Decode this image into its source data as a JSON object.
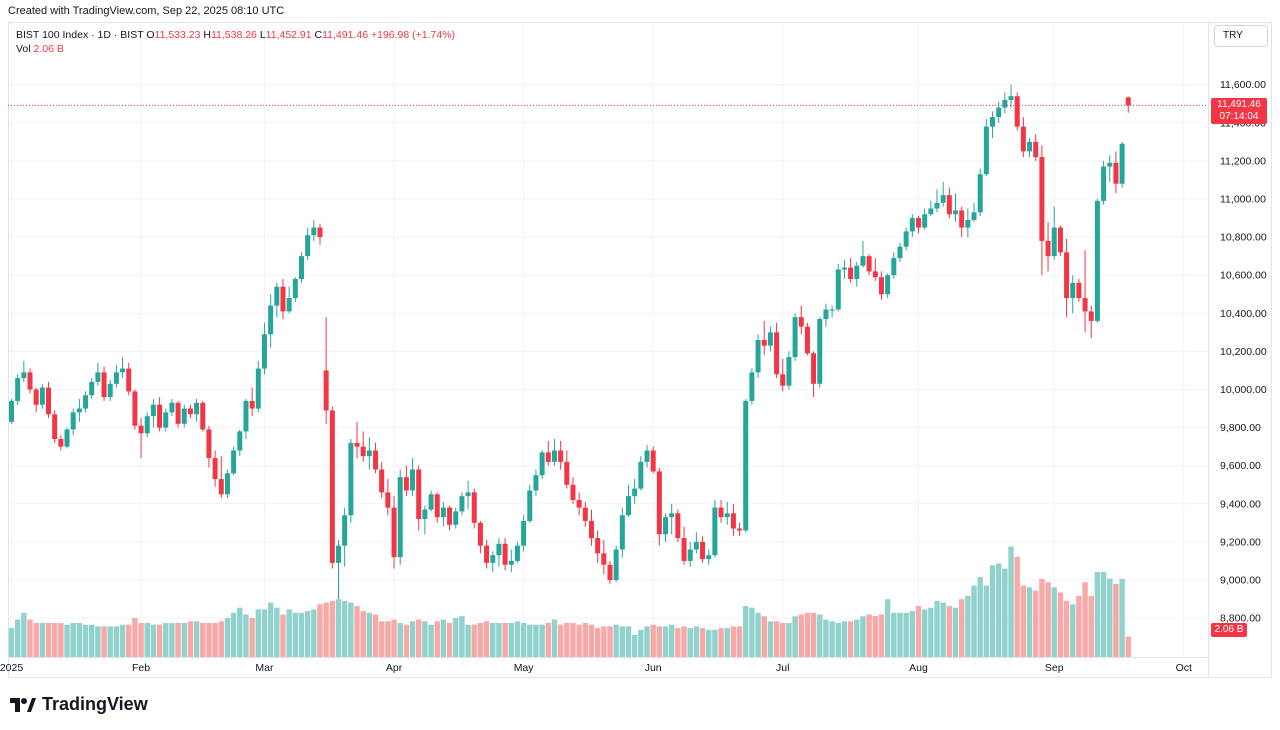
{
  "header": {
    "created_text": "Created with TradingView.com, Sep 22, 2025 08:10 UTC"
  },
  "legend": {
    "symbol": "BIST 100 Index · 1D · BIST",
    "o_label": "O",
    "o_value": "11,533.23",
    "h_label": "H",
    "h_value": "11,538.26",
    "l_label": "L",
    "l_value": "11,452.91",
    "c_label": "C",
    "c_value": "11,491.46",
    "change": "+196.98 (+1.74%)",
    "vol_label": "Vol",
    "vol_value": "2.06 B"
  },
  "currency_button": "TRY",
  "logo_text": "TradingView",
  "price_tag": {
    "price": "11,491.46",
    "countdown": "07:14:04"
  },
  "vol_tag": "2.06 B",
  "colors": {
    "up": "#26a69a",
    "down": "#f23645",
    "vol_up": "#92d2cc",
    "vol_down": "#f7a9a7",
    "grid": "#f0f3fa"
  },
  "chart_data": {
    "type": "candlestick",
    "title": "BIST 100 Index · 1D · BIST",
    "currency": "TRY",
    "y_ticks": [
      8800,
      9000,
      9200,
      9400,
      9600,
      9800,
      10000,
      10200,
      10400,
      10600,
      10800,
      11000,
      11200,
      11400,
      11600
    ],
    "y_tick_labels": [
      "8,800.00",
      "9,000.00",
      "9,200.00",
      "9,400.00",
      "9,600.00",
      "9,800.00",
      "10,000.00",
      "10,200.00",
      "10,400.00",
      "10,600.00",
      "10,800.00",
      "11,000.00",
      "11,200.00",
      "11,400.00",
      "11,600.00"
    ],
    "x_labels": [
      "2025",
      "Feb",
      "Mar",
      "Apr",
      "May",
      "Jun",
      "Jul",
      "Aug",
      "Sep",
      "Oct"
    ],
    "x_label_days": [
      0,
      21,
      41,
      62,
      83,
      104,
      125,
      147,
      169,
      190
    ],
    "last_close": 11491.46,
    "grid": true,
    "candles": [
      [
        9830,
        9950,
        9820,
        9940,
        0.85
      ],
      [
        9940,
        10080,
        9920,
        10060,
        1.1
      ],
      [
        10060,
        10150,
        10040,
        10090,
        1.3
      ],
      [
        10090,
        10110,
        9980,
        10000,
        1.1
      ],
      [
        10000,
        10010,
        9880,
        9920,
        1.0
      ],
      [
        9920,
        10030,
        9900,
        10010,
        1.0
      ],
      [
        10010,
        10040,
        9850,
        9870,
        1.0
      ],
      [
        9870,
        9890,
        9720,
        9740,
        1.0
      ],
      [
        9740,
        9760,
        9680,
        9700,
        1.0
      ],
      [
        9700,
        9800,
        9690,
        9790,
        0.95
      ],
      [
        9790,
        9900,
        9760,
        9880,
        1.0
      ],
      [
        9880,
        9950,
        9830,
        9900,
        1.0
      ],
      [
        9900,
        9990,
        9880,
        9970,
        0.95
      ],
      [
        9970,
        10060,
        9950,
        10040,
        0.95
      ],
      [
        10040,
        10140,
        10020,
        10090,
        0.9
      ],
      [
        10090,
        10120,
        9940,
        9960,
        0.9
      ],
      [
        9960,
        10050,
        9940,
        10030,
        0.9
      ],
      [
        10030,
        10130,
        10010,
        10090,
        0.9
      ],
      [
        10090,
        10170,
        10060,
        10110,
        0.95
      ],
      [
        10110,
        10140,
        9970,
        9990,
        0.95
      ],
      [
        9990,
        10000,
        9790,
        9810,
        1.15
      ],
      [
        9810,
        9850,
        9640,
        9770,
        1.0
      ],
      [
        9770,
        9880,
        9750,
        9860,
        1.0
      ],
      [
        9860,
        9950,
        9800,
        9920,
        0.95
      ],
      [
        9920,
        9960,
        9780,
        9800,
        0.95
      ],
      [
        9800,
        9900,
        9780,
        9880,
        1.0
      ],
      [
        9880,
        9950,
        9860,
        9930,
        1.0
      ],
      [
        9930,
        9940,
        9800,
        9820,
        1.0
      ],
      [
        9820,
        9920,
        9800,
        9900,
        1.0
      ],
      [
        9900,
        9920,
        9850,
        9870,
        1.05
      ],
      [
        9870,
        9950,
        9830,
        9930,
        1.05
      ],
      [
        9930,
        9940,
        9780,
        9790,
        1.0
      ],
      [
        9790,
        9810,
        9590,
        9640,
        1.0
      ],
      [
        9640,
        9680,
        9490,
        9530,
        1.0
      ],
      [
        9530,
        9650,
        9430,
        9450,
        1.05
      ],
      [
        9450,
        9580,
        9430,
        9560,
        1.15
      ],
      [
        9560,
        9700,
        9550,
        9680,
        1.3
      ],
      [
        9680,
        9790,
        9650,
        9780,
        1.45
      ],
      [
        9780,
        9950,
        9740,
        9940,
        1.25
      ],
      [
        9940,
        10010,
        9860,
        9900,
        1.15
      ],
      [
        9900,
        10150,
        9880,
        10110,
        1.4
      ],
      [
        10110,
        10350,
        10080,
        10290,
        1.4
      ],
      [
        10290,
        10500,
        10220,
        10440,
        1.6
      ],
      [
        10440,
        10560,
        10380,
        10540,
        1.45
      ],
      [
        10540,
        10580,
        10370,
        10410,
        1.25
      ],
      [
        10410,
        10540,
        10400,
        10480,
        1.4
      ],
      [
        10480,
        10590,
        10460,
        10580,
        1.3
      ],
      [
        10580,
        10720,
        10560,
        10700,
        1.3
      ],
      [
        10700,
        10850,
        10680,
        10810,
        1.35
      ],
      [
        10810,
        10890,
        10780,
        10850,
        1.4
      ],
      [
        10850,
        10870,
        10760,
        10800,
        1.55
      ],
      [
        10100,
        10380,
        9820,
        9890,
        1.6
      ],
      [
        9890,
        9910,
        9060,
        9090,
        1.65
      ],
      [
        9090,
        9210,
        8900,
        9180,
        1.7
      ],
      [
        9180,
        9380,
        9070,
        9340,
        1.65
      ],
      [
        9340,
        9740,
        9300,
        9720,
        1.6
      ],
      [
        9720,
        9830,
        9640,
        9700,
        1.5
      ],
      [
        9700,
        9780,
        9620,
        9650,
        1.35
      ],
      [
        9650,
        9750,
        9580,
        9680,
        1.3
      ],
      [
        9680,
        9720,
        9560,
        9580,
        1.25
      ],
      [
        9580,
        9620,
        9430,
        9460,
        1.05
      ],
      [
        9460,
        9530,
        9340,
        9380,
        1.05
      ],
      [
        9380,
        9440,
        9060,
        9120,
        1.1
      ],
      [
        9120,
        9580,
        9080,
        9540,
        1.0
      ],
      [
        9540,
        9600,
        9440,
        9470,
        0.95
      ],
      [
        9470,
        9640,
        9440,
        9580,
        1.05
      ],
      [
        9580,
        9600,
        9260,
        9320,
        1.1
      ],
      [
        9320,
        9390,
        9240,
        9370,
        1.05
      ],
      [
        9370,
        9470,
        9360,
        9450,
        0.95
      ],
      [
        9450,
        9460,
        9300,
        9330,
        1.05
      ],
      [
        9330,
        9410,
        9280,
        9380,
        1.1
      ],
      [
        9380,
        9390,
        9260,
        9290,
        1.0
      ],
      [
        9290,
        9380,
        9270,
        9360,
        1.15
      ],
      [
        9360,
        9460,
        9340,
        9440,
        1.2
      ],
      [
        9440,
        9520,
        9370,
        9460,
        0.95
      ],
      [
        9460,
        9480,
        9270,
        9300,
        0.95
      ],
      [
        9300,
        9310,
        9140,
        9180,
        1.0
      ],
      [
        9180,
        9210,
        9060,
        9090,
        1.05
      ],
      [
        9090,
        9150,
        9040,
        9130,
        1.0
      ],
      [
        9130,
        9220,
        9070,
        9190,
        1.0
      ],
      [
        9190,
        9220,
        9050,
        9080,
        1.0
      ],
      [
        9080,
        9160,
        9040,
        9100,
        1.0
      ],
      [
        9100,
        9200,
        9090,
        9180,
        1.05
      ],
      [
        9180,
        9340,
        9150,
        9310,
        1.0
      ],
      [
        9310,
        9500,
        9300,
        9470,
        0.95
      ],
      [
        9470,
        9580,
        9440,
        9550,
        0.95
      ],
      [
        9550,
        9680,
        9530,
        9670,
        0.95
      ],
      [
        9670,
        9730,
        9600,
        9620,
        1.0
      ],
      [
        9620,
        9740,
        9600,
        9680,
        1.1
      ],
      [
        9680,
        9730,
        9580,
        9620,
        0.95
      ],
      [
        9620,
        9680,
        9480,
        9500,
        1.0
      ],
      [
        9500,
        9540,
        9400,
        9420,
        1.0
      ],
      [
        9420,
        9460,
        9340,
        9380,
        0.95
      ],
      [
        9380,
        9410,
        9280,
        9310,
        1.0
      ],
      [
        9310,
        9370,
        9180,
        9220,
        0.95
      ],
      [
        9220,
        9260,
        9090,
        9140,
        0.85
      ],
      [
        9140,
        9210,
        9030,
        9080,
        0.9
      ],
      [
        9080,
        9100,
        8980,
        9000,
        0.9
      ],
      [
        9000,
        9180,
        8990,
        9160,
        0.95
      ],
      [
        9160,
        9380,
        9120,
        9340,
        0.9
      ],
      [
        9340,
        9500,
        9330,
        9440,
        0.9
      ],
      [
        9440,
        9530,
        9400,
        9480,
        0.65
      ],
      [
        9480,
        9650,
        9470,
        9620,
        0.8
      ],
      [
        9620,
        9710,
        9590,
        9680,
        0.9
      ],
      [
        9680,
        9700,
        9560,
        9570,
        0.95
      ],
      [
        9570,
        9590,
        9180,
        9240,
        0.9
      ],
      [
        9240,
        9350,
        9200,
        9330,
        0.9
      ],
      [
        9330,
        9400,
        9240,
        9350,
        0.95
      ],
      [
        9350,
        9370,
        9200,
        9220,
        0.85
      ],
      [
        9220,
        9280,
        9080,
        9100,
        0.9
      ],
      [
        9100,
        9200,
        9070,
        9160,
        0.85
      ],
      [
        9160,
        9250,
        9140,
        9200,
        0.9
      ],
      [
        9200,
        9230,
        9090,
        9110,
        0.85
      ],
      [
        9110,
        9160,
        9080,
        9130,
        0.8
      ],
      [
        9130,
        9420,
        9120,
        9380,
        0.8
      ],
      [
        9380,
        9420,
        9300,
        9330,
        0.85
      ],
      [
        9330,
        9410,
        9290,
        9350,
        0.85
      ],
      [
        9350,
        9400,
        9230,
        9270,
        0.9
      ],
      [
        9270,
        9300,
        9230,
        9260,
        0.9
      ],
      [
        9260,
        9950,
        9250,
        9940,
        1.5
      ],
      [
        9940,
        10110,
        9920,
        10090,
        1.45
      ],
      [
        10090,
        10290,
        10060,
        10260,
        1.3
      ],
      [
        10260,
        10360,
        10180,
        10230,
        1.2
      ],
      [
        10230,
        10330,
        10200,
        10300,
        1.05
      ],
      [
        10300,
        10350,
        10060,
        10080,
        1.05
      ],
      [
        10080,
        10160,
        9990,
        10020,
        1.0
      ],
      [
        10020,
        10200,
        10000,
        10170,
        1.0
      ],
      [
        10170,
        10400,
        10150,
        10380,
        1.2
      ],
      [
        10380,
        10440,
        10290,
        10330,
        1.25
      ],
      [
        10330,
        10350,
        10180,
        10190,
        1.3
      ],
      [
        10190,
        10200,
        9960,
        10030,
        1.3
      ],
      [
        10030,
        10380,
        10010,
        10370,
        1.25
      ],
      [
        10370,
        10450,
        10330,
        10420,
        1.1
      ],
      [
        10420,
        10440,
        10380,
        10420,
        1.05
      ],
      [
        10420,
        10660,
        10410,
        10630,
        1.0
      ],
      [
        10630,
        10680,
        10580,
        10640,
        1.05
      ],
      [
        10640,
        10690,
        10560,
        10580,
        1.05
      ],
      [
        10580,
        10670,
        10540,
        10650,
        1.1
      ],
      [
        10650,
        10780,
        10640,
        10700,
        1.2
      ],
      [
        10700,
        10710,
        10600,
        10620,
        1.25
      ],
      [
        10620,
        10690,
        10570,
        10590,
        1.2
      ],
      [
        10590,
        10620,
        10470,
        10500,
        1.25
      ],
      [
        10500,
        10610,
        10480,
        10600,
        1.7
      ],
      [
        10600,
        10720,
        10580,
        10690,
        1.3
      ],
      [
        10690,
        10770,
        10670,
        10750,
        1.3
      ],
      [
        10750,
        10850,
        10730,
        10830,
        1.3
      ],
      [
        10830,
        10920,
        10800,
        10900,
        1.35
      ],
      [
        10900,
        10910,
        10820,
        10850,
        1.5
      ],
      [
        10850,
        10950,
        10840,
        10920,
        1.4
      ],
      [
        10920,
        10990,
        10910,
        10950,
        1.45
      ],
      [
        10950,
        11050,
        10930,
        10980,
        1.65
      ],
      [
        10980,
        11090,
        10960,
        11020,
        1.6
      ],
      [
        11020,
        11060,
        10900,
        10920,
        1.5
      ],
      [
        10920,
        11030,
        10880,
        10940,
        1.45
      ],
      [
        10940,
        10960,
        10800,
        10850,
        1.7
      ],
      [
        10850,
        10950,
        10800,
        10890,
        1.8
      ],
      [
        10890,
        10980,
        10880,
        10930,
        2.1
      ],
      [
        10930,
        11160,
        10910,
        11130,
        2.35
      ],
      [
        11130,
        11420,
        11120,
        11380,
        2.1
      ],
      [
        11380,
        11460,
        11320,
        11430,
        2.7
      ],
      [
        11430,
        11510,
        11400,
        11480,
        2.75
      ],
      [
        11480,
        11560,
        11450,
        11520,
        2.6
      ],
      [
        11520,
        11600,
        11480,
        11540,
        3.25
      ],
      [
        11540,
        11560,
        11360,
        11380,
        2.95
      ],
      [
        11380,
        11430,
        11220,
        11250,
        2.1
      ],
      [
        11250,
        11320,
        11220,
        11300,
        2.05
      ],
      [
        11300,
        11340,
        11200,
        11220,
        1.95
      ],
      [
        11220,
        11280,
        10600,
        10780,
        2.3
      ],
      [
        10780,
        10880,
        10620,
        10700,
        2.2
      ],
      [
        10700,
        10960,
        10680,
        10850,
        2.05
      ],
      [
        10850,
        10860,
        10700,
        10720,
        1.9
      ],
      [
        10720,
        10790,
        10380,
        10480,
        1.65
      ],
      [
        10480,
        10600,
        10400,
        10560,
        1.55
      ],
      [
        10560,
        10580,
        10460,
        10480,
        1.8
      ],
      [
        10480,
        10730,
        10300,
        10410,
        2.2
      ],
      [
        10410,
        10440,
        10270,
        10360,
        1.8
      ],
      [
        10360,
        11000,
        10350,
        10990,
        2.5
      ],
      [
        10990,
        11200,
        10970,
        11170,
        2.5
      ],
      [
        11170,
        11230,
        11090,
        11190,
        2.3
      ],
      [
        11190,
        11250,
        11030,
        11080,
        2.15
      ],
      [
        11080,
        11300,
        11060,
        11290,
        2.3
      ],
      [
        11533.23,
        11538.26,
        11452.91,
        11491.46,
        0.6
      ]
    ]
  }
}
